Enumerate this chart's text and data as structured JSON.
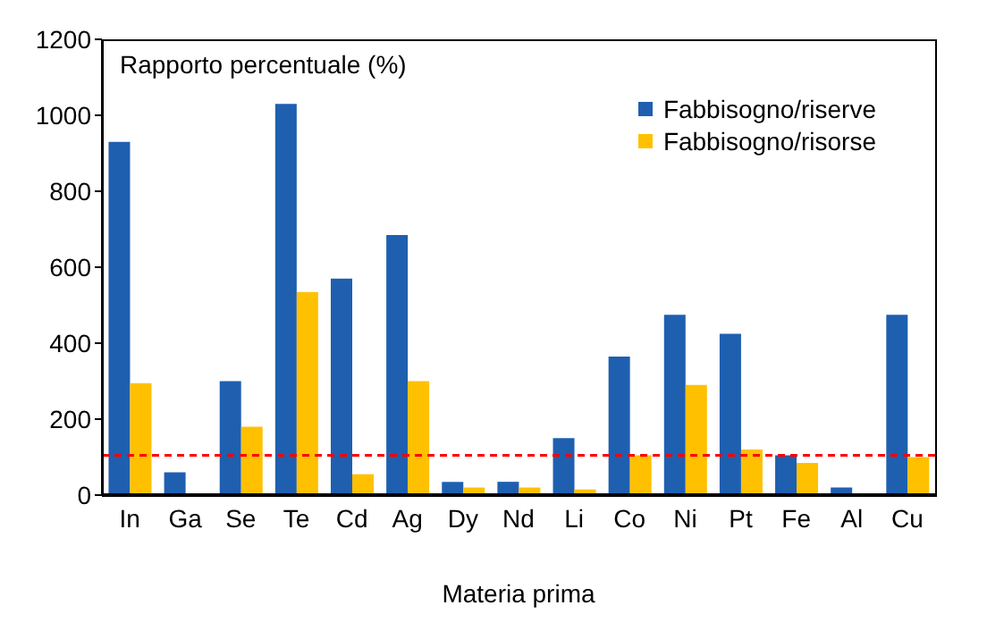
{
  "chart_data": {
    "type": "bar",
    "xlabel": "Materia prima",
    "annotations": [
      "Rapporto percentuale (%)"
    ],
    "categories": [
      "In",
      "Ga",
      "Se",
      "Te",
      "Cd",
      "Ag",
      "Dy",
      "Nd",
      "Li",
      "Co",
      "Ni",
      "Pt",
      "Fe",
      "Al",
      "Cu"
    ],
    "series": [
      {
        "name": "Fabbisogno/riserve",
        "color": "#1f5fb0",
        "values": [
          930,
          60,
          300,
          1030,
          570,
          685,
          35,
          35,
          150,
          365,
          475,
          425,
          105,
          20,
          475
        ]
      },
      {
        "name": "Fabbisogno/risorse",
        "color": "#ffc000",
        "values": [
          295,
          null,
          180,
          535,
          55,
          300,
          20,
          20,
          15,
          105,
          290,
          120,
          85,
          null,
          100
        ]
      }
    ],
    "ylim": [
      0,
      1200
    ],
    "yticks": [
      0,
      200,
      400,
      600,
      800,
      1000,
      1200
    ],
    "grid": false,
    "legend": "top right",
    "ref_lines": [
      {
        "axis": "y",
        "value": 105,
        "color": "#ff0000",
        "line_style": "dashed"
      }
    ]
  }
}
